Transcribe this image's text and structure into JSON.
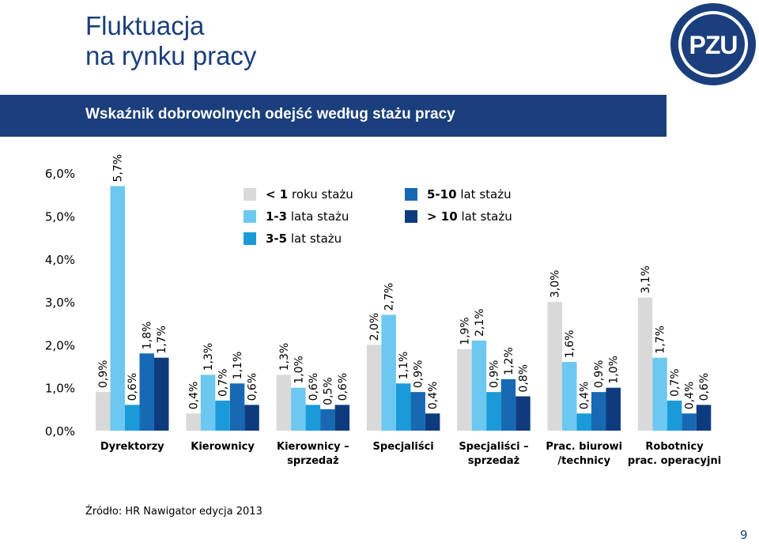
{
  "title": {
    "line1": "Fluktuacja",
    "line2": "na rynku pracy"
  },
  "banner": "Wskaźnik dobrowolnych odejść według stażu pracy",
  "logo_text": "PZU",
  "source": "Źródło: HR Nawigator edycja 2013",
  "page_number": "9",
  "colors": {
    "brand": "#1b3f7c",
    "series": [
      "#d9d9d9",
      "#6cc8f0",
      "#1a9ad9",
      "#1769b3",
      "#0e3b7e"
    ]
  },
  "legend": [
    {
      "bold": "< 1",
      "rest": " roku stażu"
    },
    {
      "bold": "1-3",
      "rest": " lata stażu"
    },
    {
      "bold": "3-5",
      "rest": " lat stażu"
    },
    {
      "bold": "5-10",
      "rest": " lat stażu"
    },
    {
      "bold": "> 10",
      "rest": " lat stażu"
    }
  ],
  "chart_data": {
    "type": "bar",
    "title": "Wskaźnik dobrowolnych odejść według stażu pracy",
    "ylim": [
      0,
      6
    ],
    "yticks": [
      "0,0%",
      "1,0%",
      "2,0%",
      "3,0%",
      "4,0%",
      "5,0%",
      "6,0%"
    ],
    "grid": false,
    "legend_position": "top",
    "categories": [
      [
        "Dyrektorzy"
      ],
      [
        "Kierownicy"
      ],
      [
        "Kierownicy –",
        "sprzedaż"
      ],
      [
        "Specjaliści"
      ],
      [
        "Specjaliści –",
        "sprzedaż"
      ],
      [
        "Prac. biurowi",
        "/technicy"
      ],
      [
        "Robotnicy",
        "prac. operacyjni"
      ]
    ],
    "series": [
      {
        "name": "< 1 roku stażu",
        "values": [
          0.9,
          0.4,
          1.3,
          2.0,
          1.9,
          3.0,
          3.1
        ],
        "labels": [
          "0,9%",
          "0,4%",
          "1,3%",
          "2,0%",
          "1,9%",
          "3,0%",
          "3,1%"
        ]
      },
      {
        "name": "1-3 lata stażu",
        "values": [
          5.7,
          1.3,
          1.0,
          2.7,
          2.1,
          1.6,
          1.7
        ],
        "labels": [
          "5,7%",
          "1,3%",
          "1,0%",
          "2,7%",
          "2,1%",
          "1,6%",
          "1,7%"
        ]
      },
      {
        "name": "3-5 lat stażu",
        "values": [
          0.6,
          0.7,
          0.6,
          1.1,
          0.9,
          0.4,
          0.7
        ],
        "labels": [
          "0,6%",
          "0,7%",
          "0,6%",
          "1,1%",
          "0,9%",
          "0,4%",
          "0,7%"
        ]
      },
      {
        "name": "5-10 lat stażu",
        "values": [
          1.8,
          1.1,
          0.5,
          0.9,
          1.2,
          0.9,
          0.4
        ],
        "labels": [
          "1,8%",
          "1,1%",
          "0,5%",
          "0,9%",
          "1,2%",
          "0,9%",
          "0,4%"
        ]
      },
      {
        "name": "> 10 lat stażu",
        "values": [
          1.7,
          0.6,
          0.6,
          0.4,
          0.8,
          1.0,
          0.6
        ],
        "labels": [
          "1,7%",
          "0,6%",
          "0,6%",
          "0,4%",
          "0,8%",
          "1,0%",
          "0,6%"
        ]
      }
    ]
  }
}
